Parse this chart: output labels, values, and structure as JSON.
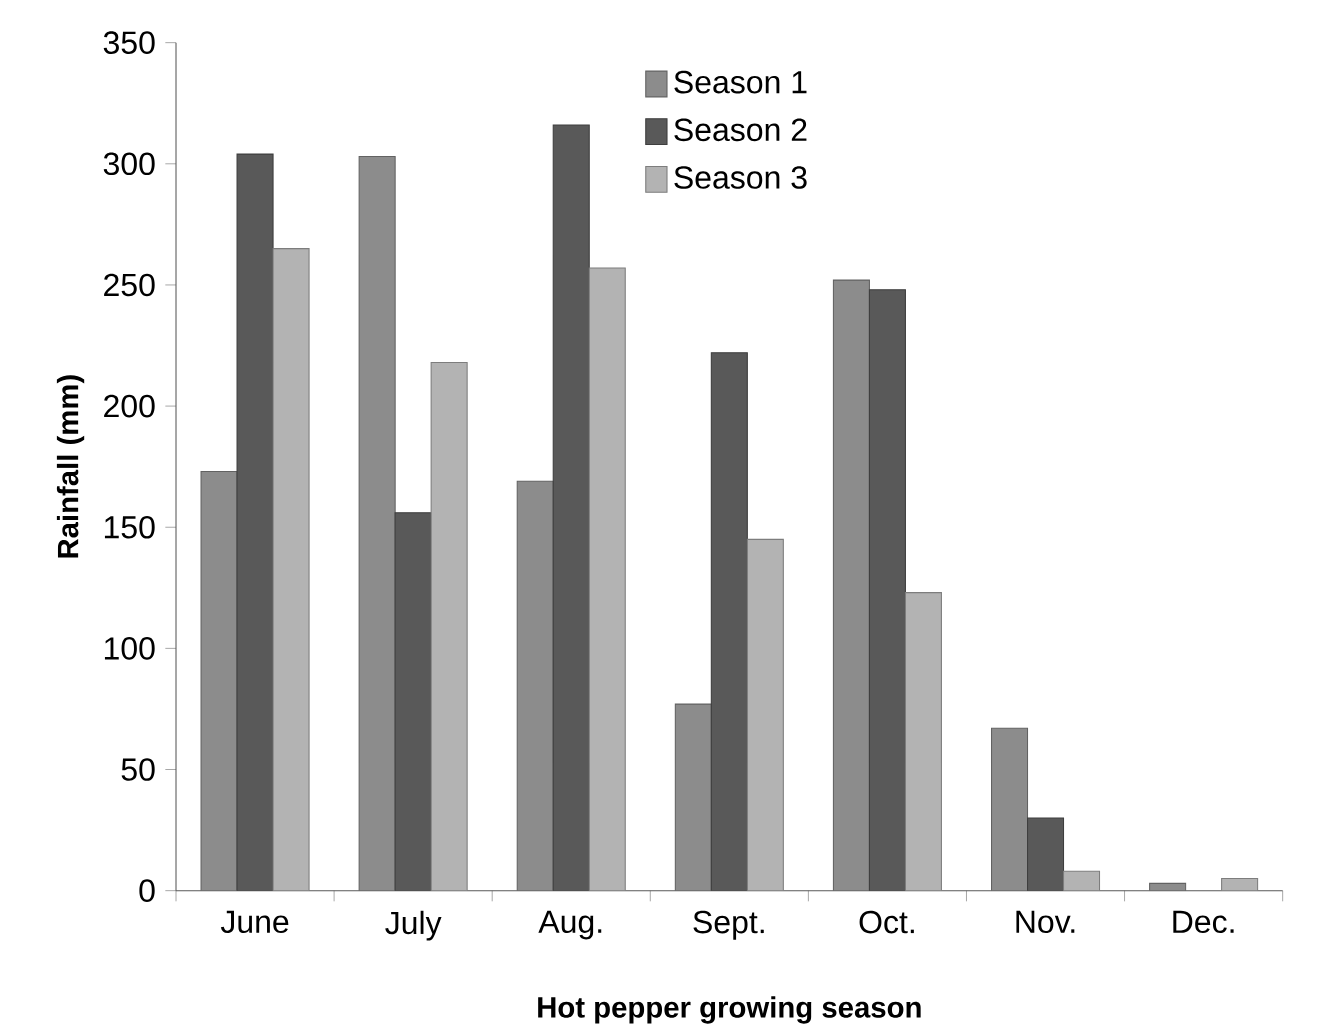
{
  "chart_data": {
    "type": "bar",
    "xlabel": "Hot pepper growing season",
    "ylabel": "Rainfall (mm)",
    "categories": [
      "June",
      "July",
      "Aug.",
      "Sept.",
      "Oct.",
      "Nov.",
      "Dec."
    ],
    "series": [
      {
        "name": "Season 1",
        "color": "#8c8c8c",
        "values": [
          173,
          303,
          169,
          77,
          252,
          67,
          3
        ]
      },
      {
        "name": "Season 2",
        "color": "#595959",
        "values": [
          304,
          156,
          316,
          222,
          248,
          30,
          null
        ]
      },
      {
        "name": "Season 3",
        "color": "#b3b3b3",
        "values": [
          265,
          218,
          257,
          145,
          123,
          8,
          5
        ]
      }
    ],
    "ylim": [
      0,
      350
    ],
    "yticks": [
      0,
      50,
      100,
      150,
      200,
      250,
      300,
      350
    ],
    "grid": false,
    "legend": "top"
  }
}
